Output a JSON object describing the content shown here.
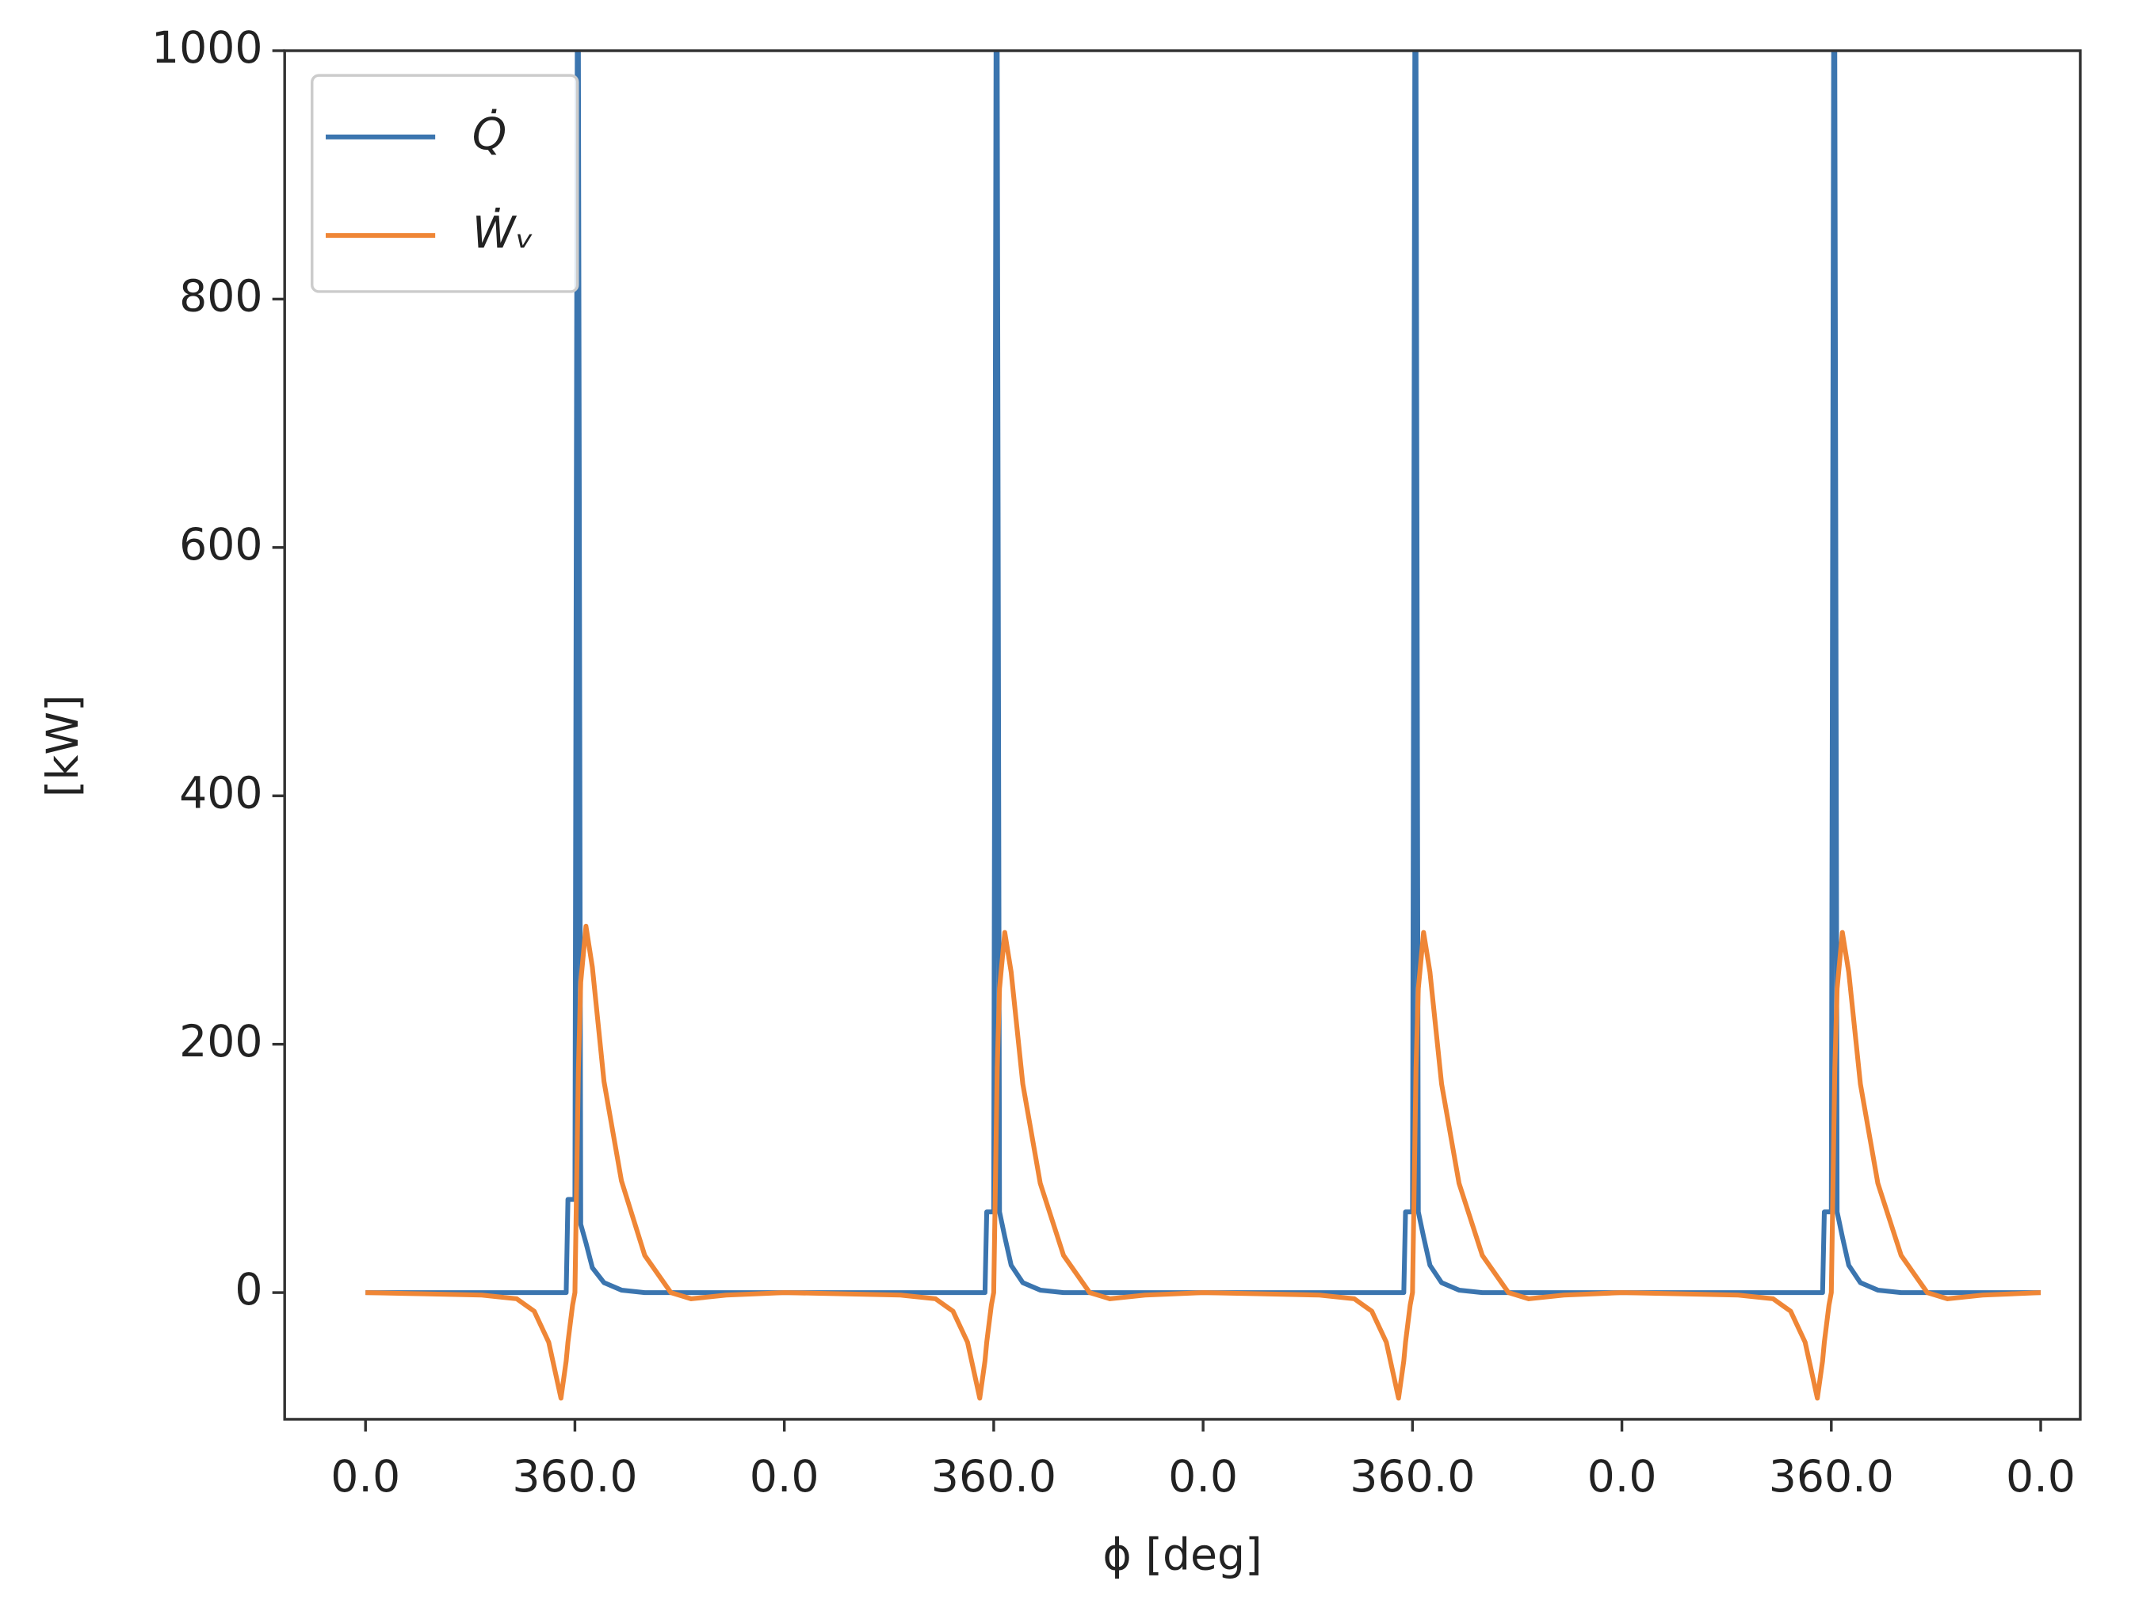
{
  "chart_data": {
    "type": "line",
    "xlabel": "ϕ [deg]",
    "ylabel": "[kW]",
    "xlim": [
      -139,
      2948
    ],
    "ylim": [
      -102,
      1000
    ],
    "xticks": [
      {
        "value": 0,
        "label": "0.0"
      },
      {
        "value": 360,
        "label": "360.0"
      },
      {
        "value": 720,
        "label": "0.0"
      },
      {
        "value": 1080,
        "label": "360.0"
      },
      {
        "value": 1440,
        "label": "0.0"
      },
      {
        "value": 1800,
        "label": "360.0"
      },
      {
        "value": 2160,
        "label": "0.0"
      },
      {
        "value": 2520,
        "label": "360.0"
      },
      {
        "value": 2880,
        "label": "0.0"
      }
    ],
    "yticks": [
      0,
      200,
      400,
      600,
      800,
      1000
    ],
    "legend": "upper left",
    "x": [
      0,
      100,
      200,
      260,
      290,
      315,
      336,
      345,
      348,
      352,
      356,
      360,
      364,
      366,
      370,
      379,
      390,
      410,
      440,
      480,
      525,
      560,
      620,
      720,
      820,
      920,
      980,
      1010,
      1035,
      1056,
      1065,
      1068,
      1072,
      1076,
      1080,
      1084,
      1086,
      1090,
      1099,
      1110,
      1130,
      1160,
      1200,
      1245,
      1280,
      1340,
      1440,
      1540,
      1640,
      1700,
      1730,
      1755,
      1776,
      1785,
      1788,
      1792,
      1796,
      1800,
      1804,
      1806,
      1810,
      1819,
      1830,
      1850,
      1880,
      1920,
      1965,
      2000,
      2060,
      2160,
      2260,
      2360,
      2420,
      2450,
      2475,
      2496,
      2505,
      2508,
      2512,
      2516,
      2520,
      2524,
      2526,
      2530,
      2539,
      2550,
      2570,
      2600,
      2640,
      2685,
      2720,
      2780,
      2880
    ],
    "series": [
      {
        "name": "Q̇",
        "color": "#3b75af",
        "values": [
          0,
          0,
          0,
          0,
          0,
          0,
          0,
          0,
          75,
          75,
          75,
          75,
          1000,
          1000,
          55,
          40,
          20,
          8,
          2,
          0,
          0,
          0,
          0,
          0,
          0,
          0,
          0,
          0,
          0,
          0,
          0,
          65,
          65,
          65,
          65,
          1000,
          1000,
          65,
          45,
          22,
          8,
          2,
          0,
          0,
          0,
          0,
          0,
          0,
          0,
          0,
          0,
          0,
          0,
          0,
          65,
          65,
          65,
          65,
          1000,
          1000,
          65,
          45,
          22,
          8,
          2,
          0,
          0,
          0,
          0,
          0,
          0,
          0,
          0,
          0,
          0,
          0,
          0,
          65,
          65,
          65,
          65,
          1000,
          1000,
          65,
          45,
          22,
          8,
          2,
          0,
          0,
          0,
          0,
          0
        ]
      },
      {
        "name": "Ẇᵥ",
        "color": "#ef8636",
        "values": [
          0,
          -1,
          -2,
          -5,
          -15,
          -40,
          -85,
          -55,
          -40,
          -25,
          -10,
          0,
          120,
          180,
          250,
          295,
          262,
          170,
          90,
          30,
          0,
          -5,
          -2,
          0,
          -1,
          -2,
          -5,
          -15,
          -40,
          -85,
          -55,
          -40,
          -25,
          -10,
          0,
          120,
          180,
          245,
          290,
          258,
          168,
          88,
          30,
          0,
          -5,
          -2,
          0,
          -1,
          -2,
          -5,
          -15,
          -40,
          -85,
          -55,
          -40,
          -25,
          -10,
          0,
          120,
          180,
          245,
          290,
          258,
          168,
          88,
          30,
          0,
          -5,
          -2,
          0,
          -1,
          -2,
          -5,
          -15,
          -40,
          -85,
          -55,
          -40,
          -25,
          -10,
          0,
          120,
          180,
          245,
          290,
          258,
          168,
          88,
          30,
          0,
          -5,
          -2,
          0
        ]
      }
    ]
  }
}
